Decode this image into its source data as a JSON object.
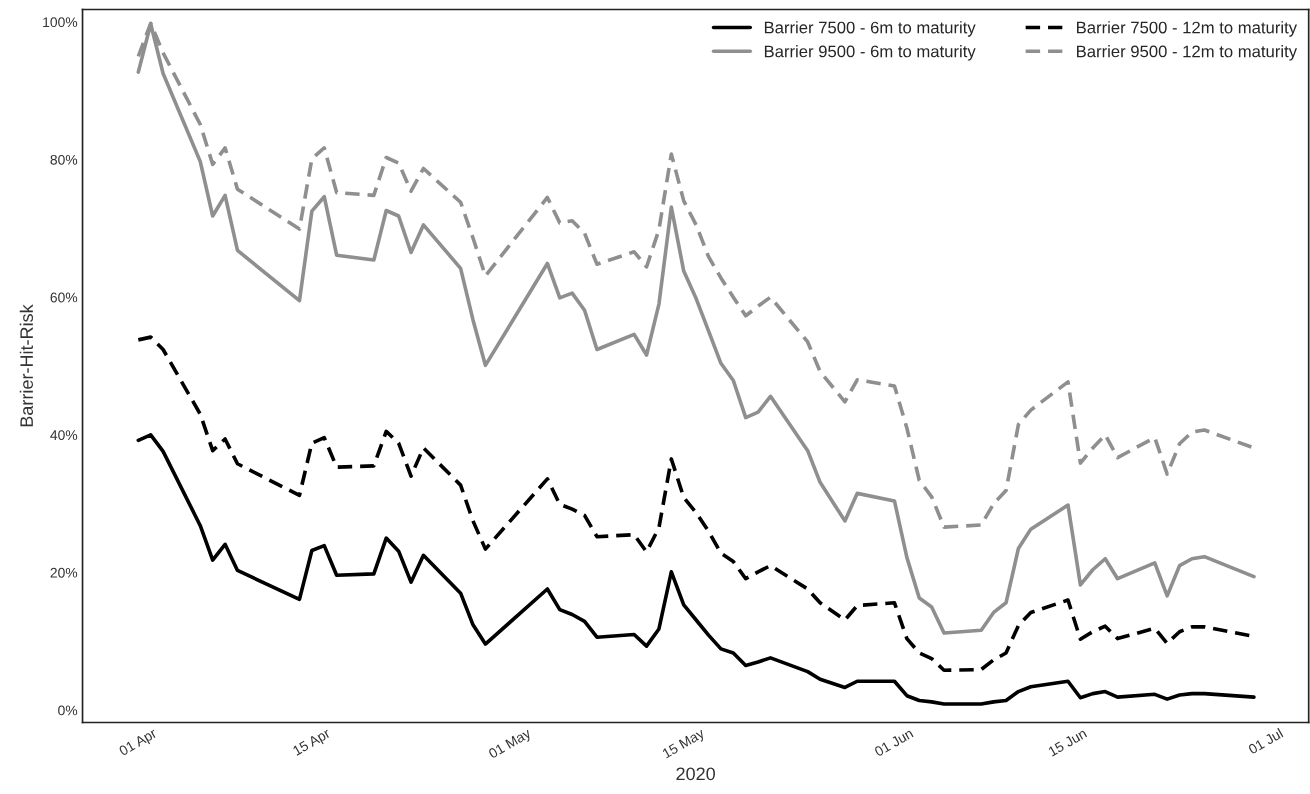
{
  "chart_data": {
    "type": "line",
    "xlabel": "2020",
    "ylabel": "Barrier-Hit-Risk",
    "x": [
      "2020-04-01",
      "2020-04-02",
      "2020-04-03",
      "2020-04-06",
      "2020-04-07",
      "2020-04-08",
      "2020-04-09",
      "2020-04-14",
      "2020-04-15",
      "2020-04-16",
      "2020-04-17",
      "2020-04-20",
      "2020-04-21",
      "2020-04-22",
      "2020-04-23",
      "2020-04-24",
      "2020-04-27",
      "2020-04-28",
      "2020-04-29",
      "2020-05-04",
      "2020-05-05",
      "2020-05-06",
      "2020-05-07",
      "2020-05-08",
      "2020-05-11",
      "2020-05-12",
      "2020-05-13",
      "2020-05-14",
      "2020-05-15",
      "2020-05-16",
      "2020-05-17",
      "2020-05-18",
      "2020-05-19",
      "2020-05-20",
      "2020-05-21",
      "2020-05-22",
      "2020-05-25",
      "2020-05-26",
      "2020-05-28",
      "2020-05-29",
      "2020-06-01",
      "2020-06-02",
      "2020-06-03",
      "2020-06-04",
      "2020-06-05",
      "2020-06-08",
      "2020-06-09",
      "2020-06-10",
      "2020-06-11",
      "2020-06-12",
      "2020-06-15",
      "2020-06-16",
      "2020-06-17",
      "2020-06-18",
      "2020-06-19",
      "2020-06-22",
      "2020-06-23",
      "2020-06-24",
      "2020-06-25",
      "2020-06-26",
      "2020-06-30"
    ],
    "series": [
      {
        "name": "Barrier 7500 - 6m to maturity",
        "color": "#000000",
        "line_style": "solid",
        "values": [
          39.2,
          40.0,
          37.6,
          26.8,
          21.8,
          24.1,
          20.3,
          16.1,
          23.2,
          23.9,
          19.6,
          19.8,
          25.0,
          23.1,
          18.6,
          22.5,
          17.0,
          12.4,
          9.6,
          17.6,
          14.6,
          13.9,
          12.9,
          10.6,
          11.0,
          9.3,
          11.8,
          20.1,
          15.3,
          13.1,
          10.9,
          8.9,
          8.3,
          6.5,
          7.0,
          7.6,
          5.6,
          4.5,
          3.3,
          4.2,
          4.2,
          2.1,
          1.4,
          1.2,
          0.9,
          0.9,
          1.2,
          1.4,
          2.7,
          3.4,
          4.2,
          1.8,
          2.4,
          2.7,
          1.9,
          2.3,
          1.6,
          2.2,
          2.4,
          2.4,
          1.9
        ]
      },
      {
        "name": "Barrier 9500 - 6m to maturity",
        "color": "#8f8f8f",
        "line_style": "solid",
        "values": [
          92.7,
          99.7,
          92.5,
          79.7,
          71.8,
          74.8,
          66.8,
          59.5,
          72.5,
          74.6,
          66.1,
          65.4,
          72.6,
          71.8,
          66.5,
          70.5,
          64.2,
          56.7,
          50.1,
          64.9,
          59.9,
          60.6,
          58.1,
          52.4,
          54.6,
          51.6,
          59.0,
          73.1,
          63.8,
          59.8,
          55.1,
          50.4,
          47.9,
          42.5,
          43.3,
          45.6,
          37.7,
          33.1,
          27.5,
          31.5,
          30.4,
          22.2,
          16.3,
          15.0,
          11.2,
          11.6,
          14.2,
          15.6,
          23.5,
          26.3,
          29.8,
          18.2,
          20.4,
          22.0,
          19.1,
          21.4,
          16.6,
          21.0,
          22.0,
          22.3,
          19.4
        ]
      },
      {
        "name": "Barrier 7500 - 12m to maturity",
        "color": "#000000",
        "line_style": "dashed",
        "values": [
          53.8,
          54.2,
          52.4,
          43.0,
          37.7,
          39.4,
          35.8,
          31.2,
          38.8,
          39.6,
          35.3,
          35.5,
          40.5,
          38.8,
          34.0,
          38.1,
          32.7,
          27.5,
          23.4,
          33.6,
          29.9,
          29.2,
          28.3,
          25.2,
          25.5,
          23.0,
          26.5,
          36.5,
          30.9,
          28.7,
          26.0,
          22.8,
          21.6,
          19.1,
          20.1,
          21.0,
          17.6,
          15.6,
          13.1,
          15.2,
          15.6,
          10.4,
          8.3,
          7.5,
          5.8,
          5.9,
          7.3,
          8.3,
          12.3,
          14.2,
          16.0,
          10.3,
          11.4,
          12.2,
          10.4,
          11.9,
          9.7,
          11.4,
          12.1,
          12.1,
          10.7
        ]
      },
      {
        "name": "Barrier 9500 - 12m to maturity",
        "color": "#8f8f8f",
        "line_style": "dashed",
        "values": [
          95.0,
          99.8,
          95.5,
          85.1,
          79.3,
          81.7,
          75.7,
          69.9,
          80.1,
          81.7,
          75.2,
          74.8,
          80.3,
          79.5,
          75.4,
          78.7,
          73.8,
          68.6,
          63.1,
          74.5,
          70.8,
          71.1,
          69.3,
          64.8,
          66.6,
          64.4,
          69.8,
          80.8,
          74.0,
          70.5,
          65.9,
          62.8,
          60.0,
          57.3,
          58.7,
          60.0,
          53.5,
          49.2,
          44.8,
          48.0,
          47.1,
          41.0,
          33.4,
          31.0,
          26.6,
          26.9,
          30.0,
          31.9,
          41.5,
          43.6,
          47.7,
          35.9,
          38.1,
          40.0,
          36.7,
          39.6,
          34.3,
          38.7,
          40.4,
          40.7,
          38.1
        ]
      }
    ],
    "xlim": [
      "2020-03-27T12:00",
      "2020-07-04T10:00"
    ],
    "xticks": [
      {
        "value": "2020-04-01",
        "label": "01 Apr"
      },
      {
        "value": "2020-04-15",
        "label": "15 Apr"
      },
      {
        "value": "2020-05-01",
        "label": "01 May"
      },
      {
        "value": "2020-05-15",
        "label": "15 May"
      },
      {
        "value": "2020-06-01",
        "label": "01 Jun"
      },
      {
        "value": "2020-06-15",
        "label": "15 Jun"
      },
      {
        "value": "2020-07-01",
        "label": "01 Jul"
      }
    ],
    "ylim": [
      -1.8,
      101.8
    ],
    "yticks": [
      {
        "value": 0,
        "label": "0%"
      },
      {
        "value": 20,
        "label": "20%"
      },
      {
        "value": 40,
        "label": "40%"
      },
      {
        "value": 60,
        "label": "60%"
      },
      {
        "value": 80,
        "label": "80%"
      },
      {
        "value": 100,
        "label": "100%"
      }
    ],
    "legend": "top right",
    "grid": false,
    "marker": "none"
  }
}
